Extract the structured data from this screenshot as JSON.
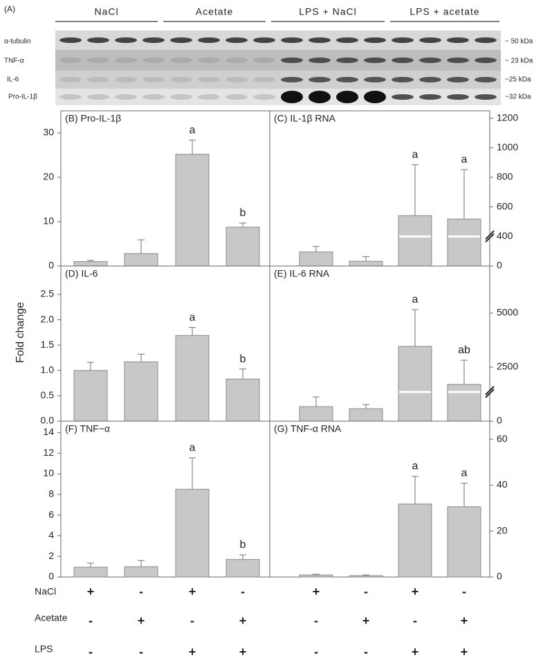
{
  "blot": {
    "panel_label": "(A)",
    "groups": [
      "NaCl",
      "Acetate",
      "LPS + NaCl",
      "LPS + acetate"
    ],
    "proteins": [
      "α-tubulin",
      "TNF-α",
      "IL-6",
      "Pro-IL-1β"
    ],
    "sizes": [
      "~ 50 kDa",
      "~ 23 kDa",
      "~25 kDa",
      "~32 kDa"
    ]
  },
  "y_label": "Fold change",
  "chart_data": [
    {
      "type": "bar",
      "title": "(B) Pro-IL-1β",
      "axis_side": "left",
      "color": "#c8c8c8",
      "ylim": [
        0,
        35
      ],
      "yticks": [
        0,
        10,
        20,
        30
      ],
      "values": [
        1.0,
        2.8,
        25.2,
        8.75
      ],
      "errors": [
        0.3,
        3.1,
        3.2,
        0.95
      ],
      "annotations": [
        null,
        null,
        "a",
        "b"
      ]
    },
    {
      "type": "bar",
      "title": "(C) IL-1β RNA",
      "axis_side": "right",
      "color": "#c8c8c8",
      "ylim": [
        0,
        1250
      ],
      "yticks": [
        0,
        400,
        600,
        800,
        1000,
        1200
      ],
      "axis_break": 400,
      "values": [
        190,
        64,
        541,
        518
      ],
      "errors": [
        74,
        63,
        344,
        334
      ],
      "annotations": [
        null,
        null,
        "a",
        "a"
      ]
    },
    {
      "type": "bar",
      "title": "(D) IL-6",
      "axis_side": "left",
      "color": "#c8c8c8",
      "ylim": [
        0,
        3.06
      ],
      "yticks": [
        {
          "value": 0,
          "label": "0.0"
        },
        0.5,
        {
          "value": 1,
          "label": "1.0"
        },
        1.5,
        {
          "value": 2,
          "label": "2.0"
        },
        2.5
      ],
      "values": [
        1.0,
        1.17,
        1.69,
        0.83
      ],
      "errors": [
        0.16,
        0.15,
        0.16,
        0.2
      ],
      "annotations": [
        null,
        null,
        "a",
        "b"
      ]
    },
    {
      "type": "bar",
      "title": "(E) IL-6 RNA",
      "axis_side": "right",
      "color": "#c8c8c8",
      "ylim": [
        0,
        7180
      ],
      "yticks": [
        0,
        2500,
        5000
      ],
      "axis_break": 1350,
      "values": [
        673,
        577,
        3462,
        1700
      ],
      "errors": [
        449,
        192,
        1700,
        1120
      ],
      "annotations": [
        null,
        null,
        "a",
        "ab"
      ]
    },
    {
      "type": "bar",
      "title": "(F) TNF−α",
      "axis_side": "left",
      "color": "#c8c8c8",
      "ylim": [
        0,
        15.1
      ],
      "yticks": [
        0,
        2,
        4,
        6,
        8,
        10,
        12,
        14
      ],
      "values": [
        0.95,
        1.0,
        8.5,
        1.7
      ],
      "errors": [
        0.4,
        0.6,
        3.05,
        0.45
      ],
      "annotations": [
        null,
        null,
        "a",
        "b"
      ]
    },
    {
      "type": "bar",
      "title": "(G) TNF-α RNA",
      "axis_side": "right",
      "color": "#c8c8c8",
      "ylim": [
        0,
        67.9
      ],
      "yticks": [
        0,
        20,
        40,
        60
      ],
      "values": [
        0.9,
        0.6,
        31.8,
        30.6
      ],
      "errors": [
        0.3,
        0.3,
        12.1,
        10.3
      ],
      "annotations": [
        null,
        null,
        "a",
        "a"
      ]
    }
  ],
  "treatments": [
    {
      "name": "NaCl",
      "signs": [
        "+",
        "-",
        "+",
        "-",
        "+",
        "-",
        "+",
        "-"
      ]
    },
    {
      "name": "Acetate",
      "signs": [
        "-",
        "+",
        "-",
        "+",
        "-",
        "+",
        "-",
        "+"
      ]
    },
    {
      "name": "LPS",
      "signs": [
        "-",
        "-",
        "+",
        "+",
        "-",
        "-",
        "+",
        "+"
      ]
    }
  ]
}
